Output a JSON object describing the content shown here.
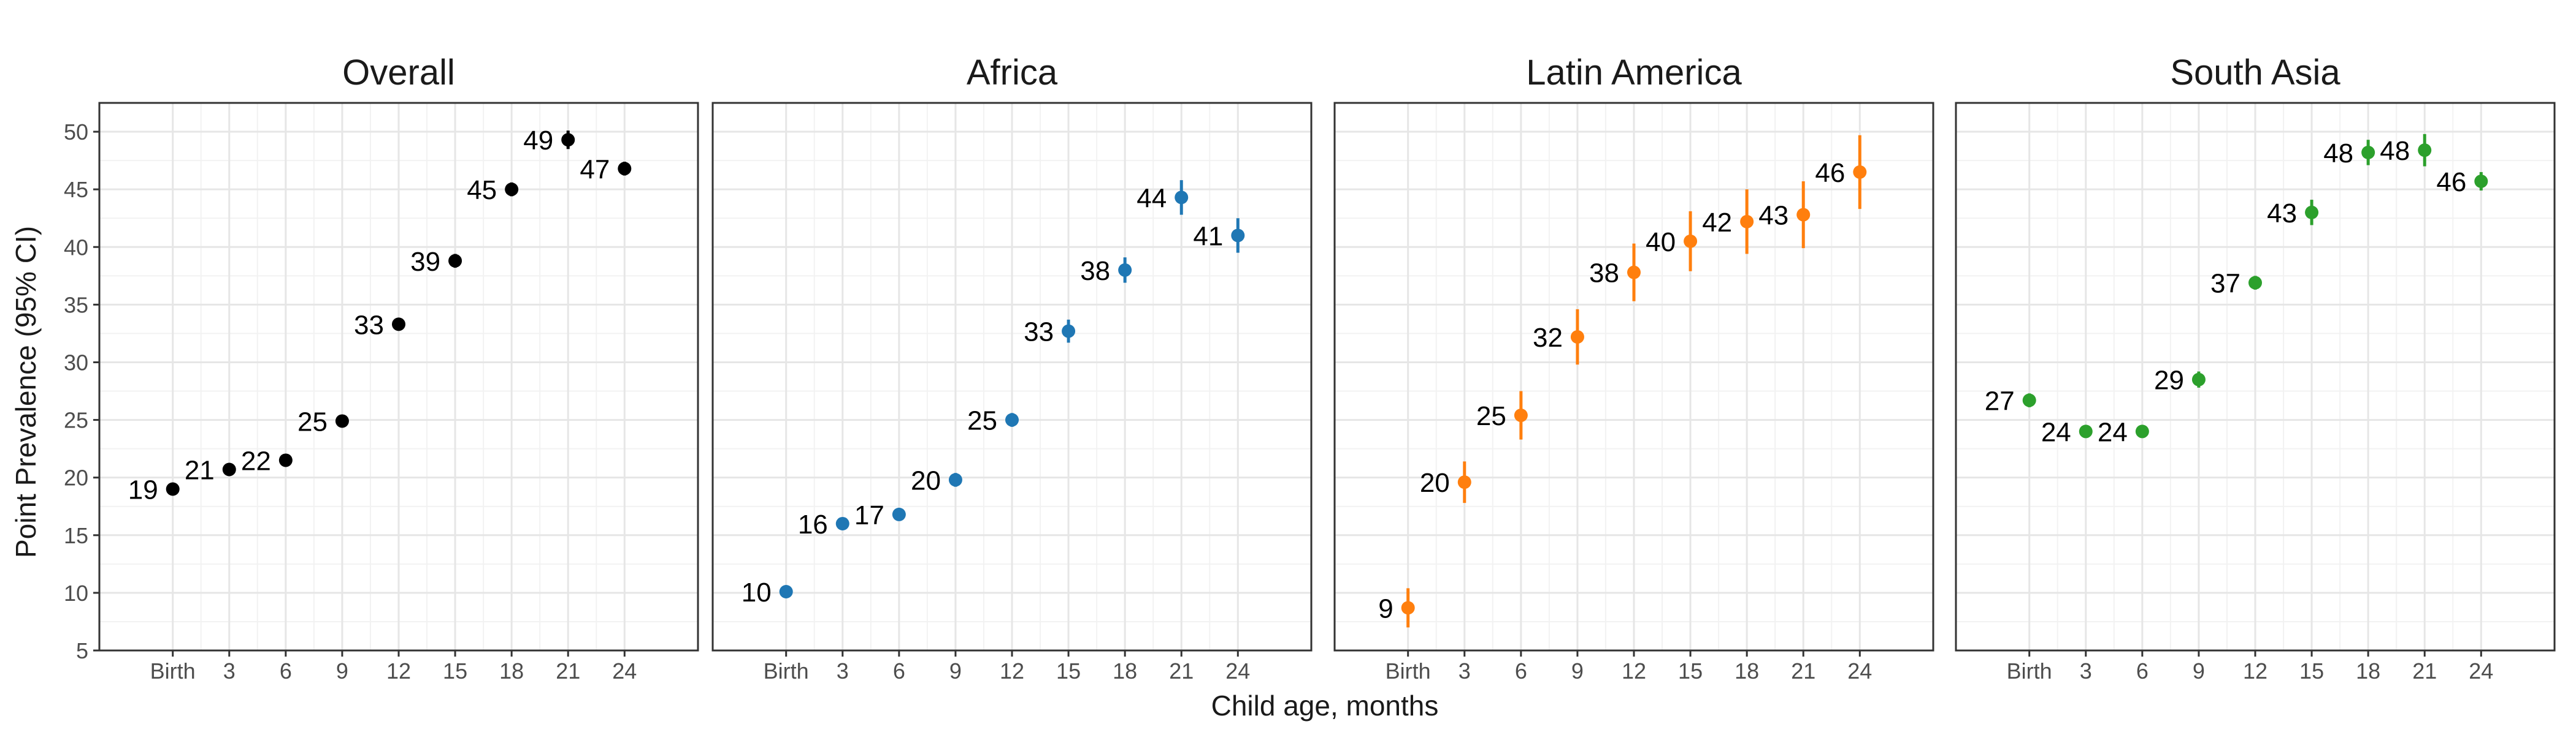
{
  "chart_data": {
    "type": "scatter",
    "ylabel": "Point Prevalence (95% CI)",
    "xlabel": "Child age, months",
    "x_categories": [
      "Birth",
      "3",
      "6",
      "9",
      "12",
      "15",
      "18",
      "21",
      "24"
    ],
    "y_ticks": [
      5,
      10,
      15,
      20,
      25,
      30,
      35,
      40,
      45,
      50
    ],
    "ylim": [
      5,
      52.5
    ],
    "grid": true,
    "legend": "none",
    "panels": [
      {
        "title": "Overall",
        "color": "#000000",
        "values": [
          19.0,
          20.7,
          21.5,
          24.9,
          33.3,
          38.8,
          45.0,
          49.3,
          46.8
        ],
        "ci_low": [
          18.6,
          20.3,
          21.1,
          24.5,
          32.9,
          38.2,
          44.4,
          48.5,
          46.2
        ],
        "ci_high": [
          19.4,
          21.1,
          21.9,
          25.3,
          33.7,
          39.4,
          45.6,
          50.1,
          47.4
        ],
        "labels": [
          "19",
          "21",
          "22",
          "25",
          "33",
          "39",
          "45",
          "49",
          "47"
        ]
      },
      {
        "title": "Africa",
        "color": "#1f77b4",
        "values": [
          10.1,
          16.0,
          16.8,
          19.8,
          25.0,
          32.7,
          38.0,
          44.3,
          41.0
        ],
        "ci_low": [
          9.7,
          15.6,
          16.3,
          19.2,
          24.4,
          31.7,
          36.9,
          42.8,
          39.5
        ],
        "ci_high": [
          10.5,
          16.4,
          17.3,
          20.4,
          25.6,
          33.7,
          39.1,
          45.8,
          42.5
        ],
        "labels": [
          "10",
          "16",
          "17",
          "20",
          "25",
          "33",
          "38",
          "44",
          "41"
        ]
      },
      {
        "title": "Latin America",
        "color": "#ff7f0e",
        "values": [
          8.7,
          19.6,
          25.4,
          32.2,
          37.8,
          40.5,
          42.2,
          42.8,
          46.5
        ],
        "ci_low": [
          7.0,
          17.8,
          23.3,
          29.8,
          35.3,
          37.9,
          39.4,
          39.9,
          43.3
        ],
        "ci_high": [
          10.4,
          21.4,
          27.5,
          34.6,
          40.3,
          43.1,
          45.0,
          45.7,
          49.7
        ],
        "labels": [
          "9",
          "20",
          "25",
          "32",
          "38",
          "40",
          "42",
          "43",
          "46"
        ]
      },
      {
        "title": "South Asia",
        "color": "#2ca02c",
        "values": [
          26.7,
          24.0,
          24.0,
          28.5,
          36.9,
          43.0,
          48.2,
          48.4,
          45.7
        ],
        "ci_low": [
          26.1,
          23.6,
          23.6,
          27.8,
          36.3,
          41.9,
          47.1,
          47.0,
          44.9
        ],
        "ci_high": [
          27.3,
          24.4,
          24.4,
          29.2,
          37.5,
          44.1,
          49.3,
          49.8,
          46.5
        ],
        "labels": [
          "27",
          "24",
          "24",
          "29",
          "37",
          "43",
          "48",
          "48",
          "46"
        ]
      }
    ]
  }
}
